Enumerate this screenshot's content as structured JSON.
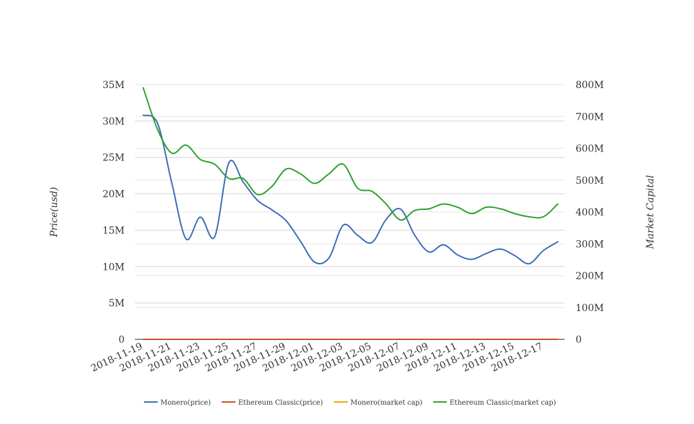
{
  "chart_data": {
    "type": "line",
    "x": [
      "2018-11-19",
      "2018-11-20",
      "2018-11-21",
      "2018-11-22",
      "2018-11-23",
      "2018-11-24",
      "2018-11-25",
      "2018-11-26",
      "2018-11-27",
      "2018-11-28",
      "2018-11-29",
      "2018-11-30",
      "2018-12-01",
      "2018-12-02",
      "2018-12-03",
      "2018-12-04",
      "2018-12-05",
      "2018-12-06",
      "2018-12-07",
      "2018-12-08",
      "2018-12-09",
      "2018-12-10",
      "2018-12-11",
      "2018-12-12",
      "2018-12-13",
      "2018-12-14",
      "2018-12-15",
      "2018-12-16",
      "2018-12-17",
      "2018-12-18"
    ],
    "x_tick_labels": [
      "2018-11-19",
      "2018-11-21",
      "2018-11-23",
      "2018-11-25",
      "2018-11-27",
      "2018-11-29",
      "2018-12-01",
      "2018-12-03",
      "2018-12-05",
      "2018-12-07",
      "2018-12-09",
      "2018-12-11",
      "2018-12-13",
      "2018-12-15",
      "2018-12-17"
    ],
    "y_left": {
      "label": "Price(usd)",
      "range": [
        0,
        35000000
      ],
      "ticks": [
        "0",
        "5M",
        "10M",
        "15M",
        "20M",
        "25M",
        "30M",
        "35M"
      ]
    },
    "y_right": {
      "label": "Market Capital",
      "range": [
        0,
        800000000
      ],
      "ticks": [
        "0",
        "100M",
        "200M",
        "300M",
        "400M",
        "500M",
        "600M",
        "700M",
        "800M"
      ]
    },
    "grid": true,
    "legend_position": "bottom",
    "series": [
      {
        "name": "Monero(price)",
        "axis": "left",
        "color": "#3b6cb7",
        "values": [
          30800000,
          29700000,
          21500000,
          13800000,
          16800000,
          14100000,
          24300000,
          21600000,
          19100000,
          17800000,
          16300000,
          13500000,
          10600000,
          11200000,
          15700000,
          14300000,
          13300000,
          16500000,
          17900000,
          14300000,
          12000000,
          13000000,
          11600000,
          11000000,
          11800000,
          12400000,
          11500000,
          10400000,
          12200000,
          13400000
        ]
      },
      {
        "name": "Ethereum Classic(price)",
        "axis": "left",
        "color": "#c8501e",
        "values": [
          0,
          0,
          0,
          0,
          0,
          0,
          0,
          0,
          0,
          0,
          0,
          0,
          0,
          0,
          0,
          0,
          0,
          0,
          0,
          0,
          0,
          0,
          0,
          0,
          0,
          0,
          0,
          0,
          0,
          0
        ]
      },
      {
        "name": "Monero(market cap)",
        "axis": "right",
        "color": "#f0a500",
        "values": [
          0,
          0,
          0,
          0,
          0,
          0,
          0,
          0,
          0,
          0,
          0,
          0,
          0,
          0,
          0,
          0,
          0,
          0,
          0,
          0,
          0,
          0,
          0,
          0,
          0,
          0,
          0,
          0,
          0,
          0
        ]
      },
      {
        "name": "Ethereum Classic(market cap)",
        "axis": "right",
        "color": "#2ca02c",
        "values": [
          790000000,
          660000000,
          585000000,
          610000000,
          565000000,
          550000000,
          505000000,
          505000000,
          455000000,
          480000000,
          535000000,
          520000000,
          490000000,
          520000000,
          550000000,
          475000000,
          465000000,
          425000000,
          375000000,
          405000000,
          410000000,
          425000000,
          415000000,
          395000000,
          415000000,
          410000000,
          395000000,
          385000000,
          385000000,
          425000000
        ]
      }
    ]
  }
}
